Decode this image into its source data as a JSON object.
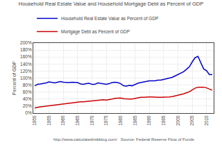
{
  "chart_data": {
    "type": "line",
    "title": "Household Real Estate Value and Household Mortgage Debt as Percent of GDP",
    "ylabel": "Percent of GDP",
    "annotations": [
      "http://www.calculatedriskblog.com/   Source: Federal Reserve Flow of Funds"
    ],
    "x": [
      1950,
      1951,
      1952,
      1953,
      1954,
      1955,
      1956,
      1957,
      1958,
      1959,
      1960,
      1961,
      1962,
      1963,
      1964,
      1965,
      1966,
      1967,
      1968,
      1969,
      1970,
      1971,
      1972,
      1973,
      1974,
      1975,
      1976,
      1977,
      1978,
      1979,
      1980,
      1981,
      1982,
      1983,
      1984,
      1985,
      1986,
      1987,
      1988,
      1989,
      1990,
      1991,
      1992,
      1993,
      1994,
      1995,
      1996,
      1997,
      1998,
      1999,
      2000,
      2001,
      2002,
      2003,
      2004,
      2005,
      2006,
      2007,
      2008,
      2009,
      2010,
      2011,
      2012
    ],
    "series": [
      {
        "name": "Household Real Estate Value as Percent of GDP",
        "color": "#0000cc",
        "values": [
          0.78,
          0.82,
          0.83,
          0.84,
          0.86,
          0.89,
          0.88,
          0.86,
          0.88,
          0.9,
          0.88,
          0.87,
          0.87,
          0.88,
          0.88,
          0.87,
          0.83,
          0.82,
          0.84,
          0.85,
          0.82,
          0.82,
          0.86,
          0.85,
          0.83,
          0.82,
          0.84,
          0.87,
          0.88,
          0.87,
          0.84,
          0.78,
          0.77,
          0.79,
          0.78,
          0.82,
          0.85,
          0.87,
          0.89,
          0.9,
          0.92,
          0.92,
          0.92,
          0.94,
          0.94,
          0.96,
          0.98,
          0.99,
          1.02,
          1.06,
          1.1,
          1.14,
          1.18,
          1.25,
          1.32,
          1.46,
          1.58,
          1.62,
          1.43,
          1.26,
          1.21,
          1.1,
          1.1
        ]
      },
      {
        "name": "Mortgage Debt as Percent of GDP",
        "color": "#cc0000",
        "values": [
          0.15,
          0.17,
          0.18,
          0.19,
          0.2,
          0.22,
          0.23,
          0.23,
          0.24,
          0.26,
          0.27,
          0.28,
          0.29,
          0.3,
          0.31,
          0.32,
          0.32,
          0.32,
          0.33,
          0.34,
          0.34,
          0.35,
          0.37,
          0.38,
          0.38,
          0.37,
          0.38,
          0.4,
          0.42,
          0.43,
          0.43,
          0.41,
          0.4,
          0.4,
          0.4,
          0.42,
          0.44,
          0.45,
          0.45,
          0.46,
          0.46,
          0.46,
          0.45,
          0.45,
          0.45,
          0.45,
          0.46,
          0.46,
          0.47,
          0.49,
          0.5,
          0.52,
          0.55,
          0.58,
          0.61,
          0.66,
          0.71,
          0.74,
          0.74,
          0.74,
          0.72,
          0.68,
          0.65
        ]
      }
    ],
    "xlim": [
      1949.5,
      2012.5
    ],
    "xticks": [
      1950,
      1955,
      1960,
      1965,
      1970,
      1975,
      1980,
      1985,
      1990,
      1995,
      2000,
      2005,
      2010
    ],
    "ylim": [
      0,
      2.0
    ],
    "yticks": [
      {
        "value": 0.0,
        "label": "0%"
      },
      {
        "value": 0.2,
        "label": "20%"
      },
      {
        "value": 0.4,
        "label": "40%"
      },
      {
        "value": 0.6,
        "label": "60%"
      },
      {
        "value": 0.8,
        "label": "80%"
      },
      {
        "value": 1.0,
        "label": "100%"
      },
      {
        "value": 1.2,
        "label": "120%"
      },
      {
        "value": 1.4,
        "label": "140%"
      },
      {
        "value": 1.6,
        "label": "160%"
      },
      {
        "value": 1.8,
        "label": "180%"
      },
      {
        "value": 2.0,
        "label": "200%"
      }
    ],
    "grid": true,
    "legend": "upper left"
  }
}
